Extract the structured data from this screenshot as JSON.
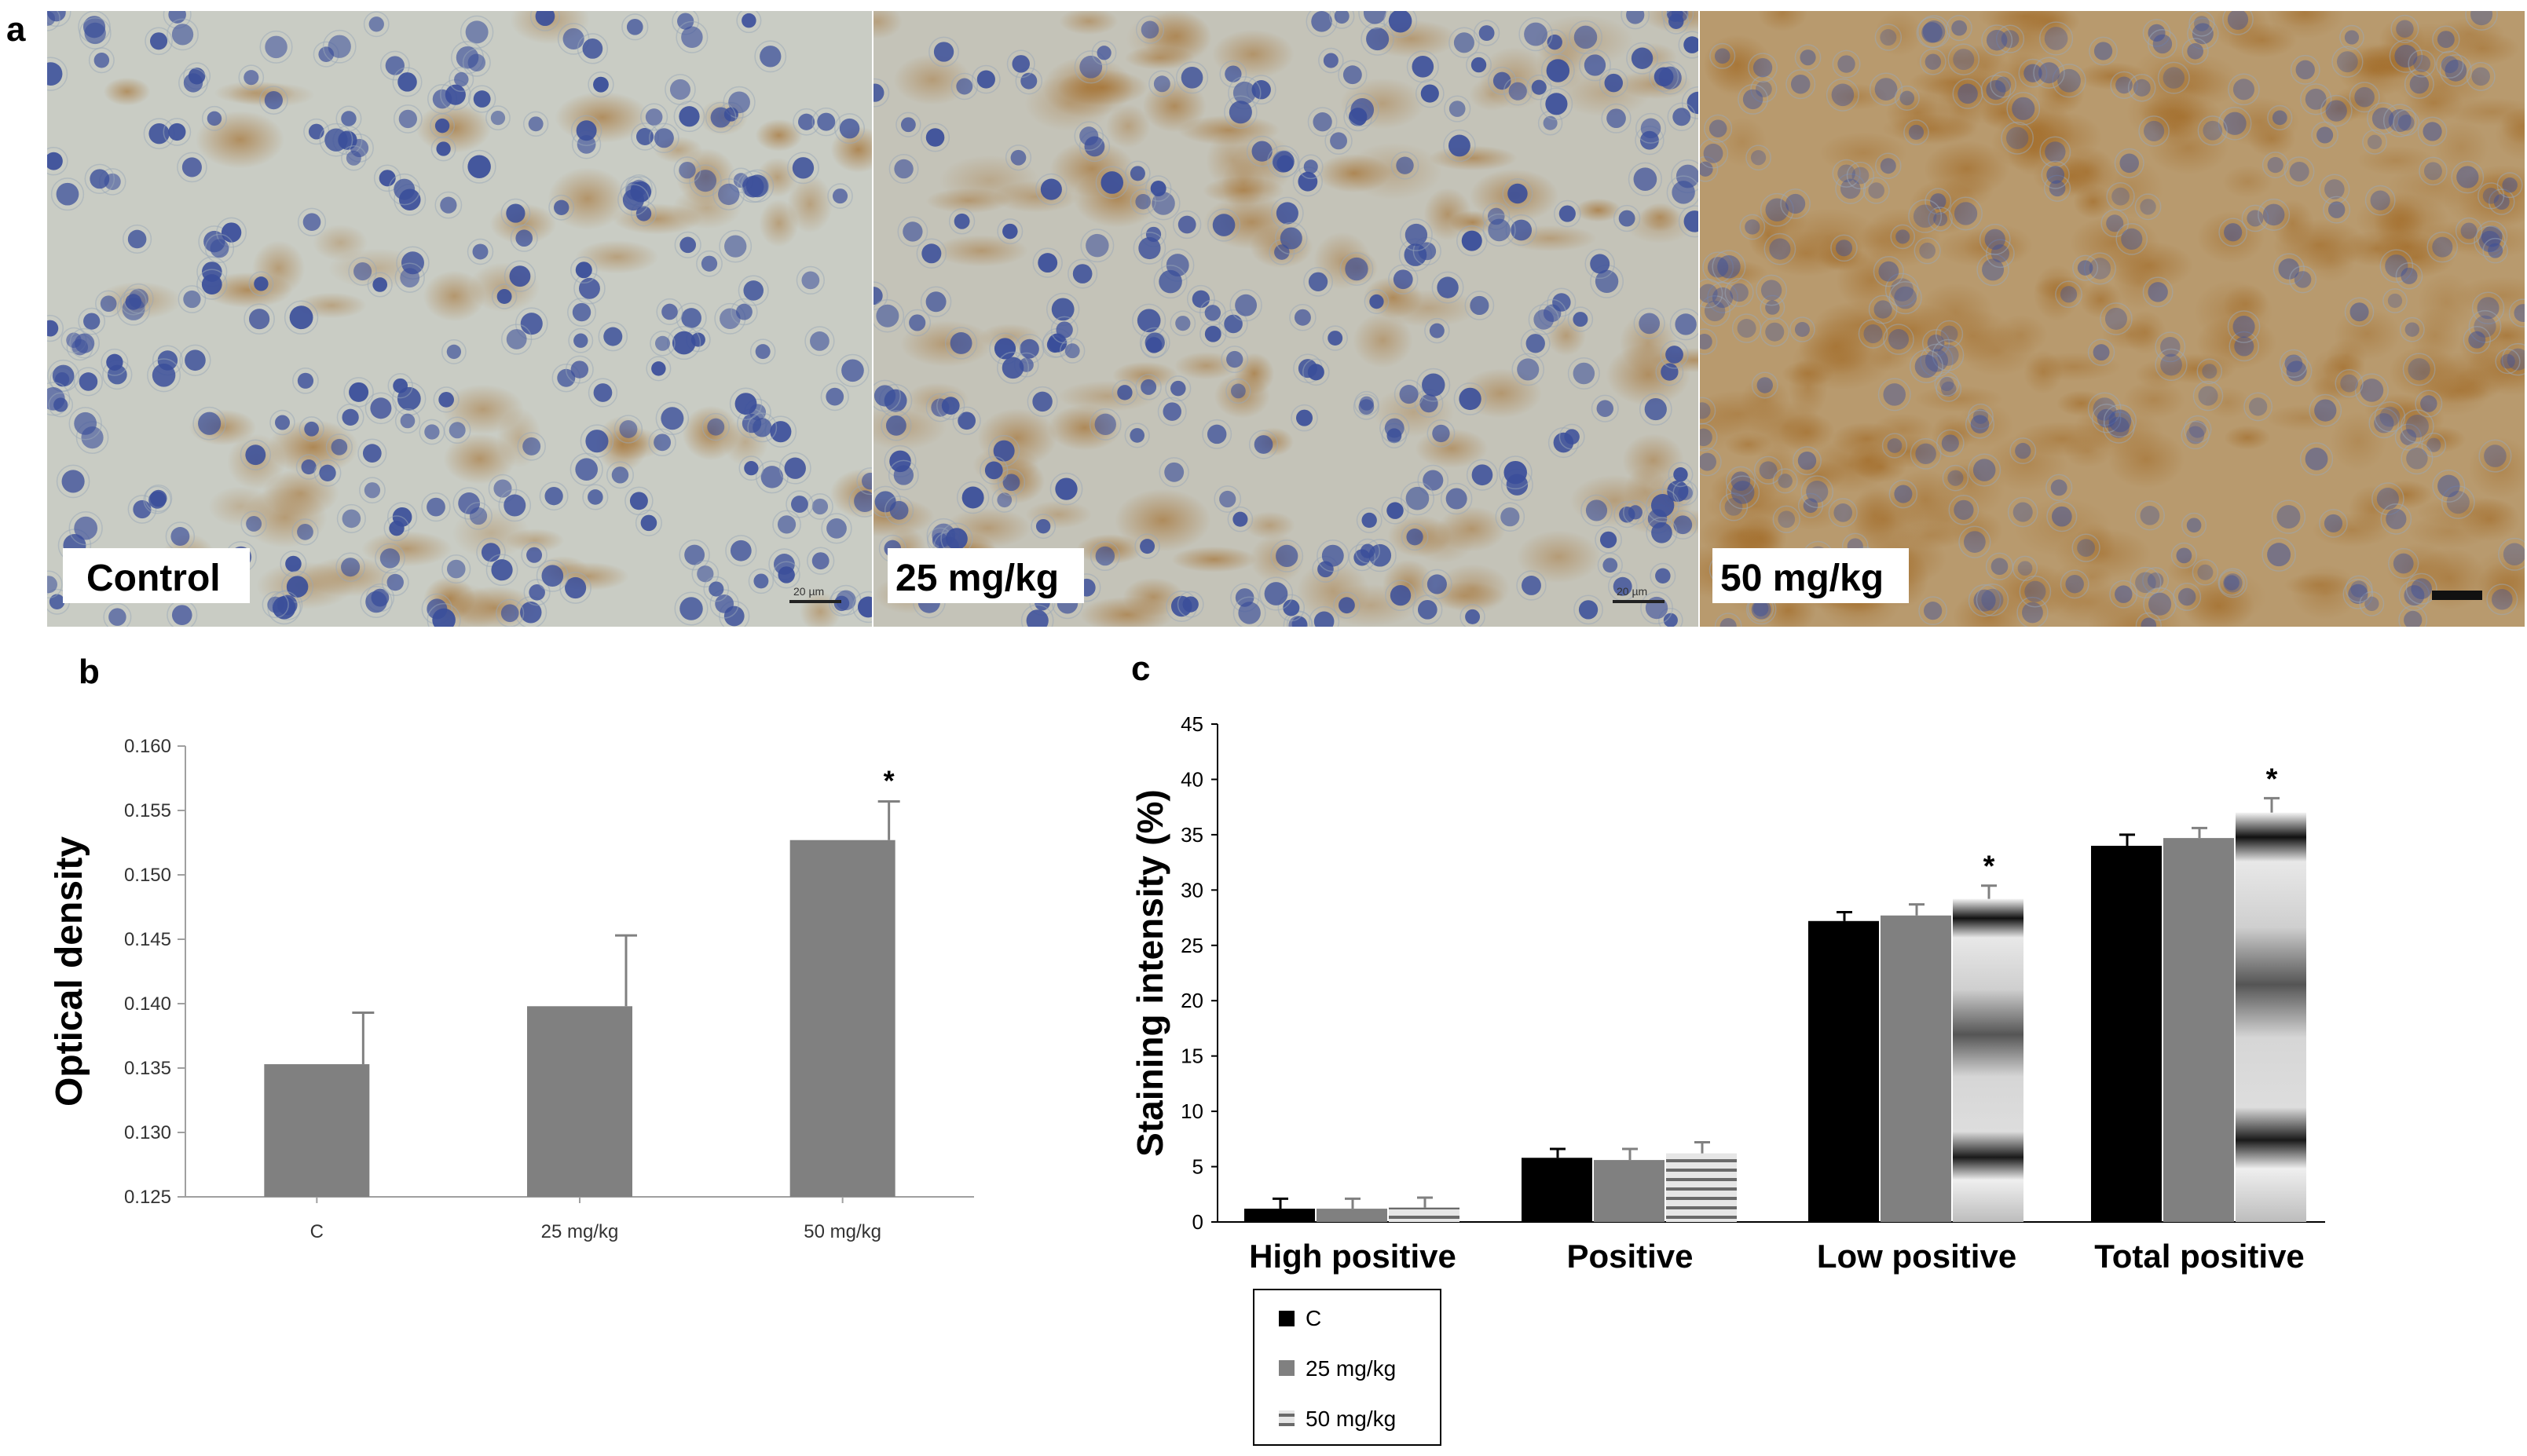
{
  "panels": {
    "a": {
      "letter": "a",
      "images": [
        {
          "label": "Control",
          "scale_text": "20 µm"
        },
        {
          "label": "25 mg/kg",
          "scale_text": "20 µm"
        },
        {
          "label": "50 mg/kg",
          "scale_text": ""
        }
      ],
      "colors": {
        "tissue": "#c9ccc4",
        "nuclei": "#3a4e9a",
        "stain": "#b07b35"
      }
    },
    "b": {
      "letter": "b"
    },
    "c": {
      "letter": "c"
    }
  },
  "legend": {
    "items": [
      {
        "label": "C",
        "pattern": "solid-black"
      },
      {
        "label": "25 mg/kg",
        "pattern": "solid-gray"
      },
      {
        "label": "50 mg/kg",
        "pattern": "striped-gray"
      }
    ]
  },
  "chart_data": [
    {
      "type": "bar",
      "panel": "b",
      "categories": [
        "C",
        "25 mg/kg",
        "50 mg/kg"
      ],
      "values": [
        0.1353,
        0.1398,
        0.1527
      ],
      "errors": [
        0.004,
        0.0055,
        0.003
      ],
      "significance": [
        "",
        "",
        "*"
      ],
      "xlabel": "",
      "ylabel": "Optical density",
      "ylim": [
        0.125,
        0.16
      ],
      "yticks": [
        "0.125",
        "0.130",
        "0.135",
        "0.140",
        "0.145",
        "0.150",
        "0.155",
        "0.160"
      ],
      "colors": {
        "bar": "#808080"
      }
    },
    {
      "type": "bar",
      "panel": "c",
      "categories": [
        "High positive",
        "Positive",
        "Low positive",
        "Total positive"
      ],
      "series": [
        {
          "label": "C",
          "values": [
            1.2,
            5.8,
            27.2,
            34.0
          ],
          "errors": [
            0.9,
            0.8,
            0.8,
            1.0
          ]
        },
        {
          "label": "25 mg/kg",
          "values": [
            1.2,
            5.6,
            27.7,
            34.7
          ],
          "errors": [
            0.9,
            1.0,
            1.0,
            0.9
          ]
        },
        {
          "label": "50 mg/kg",
          "values": [
            1.3,
            6.2,
            29.2,
            37.0
          ],
          "errors": [
            0.9,
            1.0,
            1.2,
            1.3
          ]
        }
      ],
      "significance": [
        [
          "",
          "",
          ""
        ],
        [
          "",
          "",
          ""
        ],
        [
          "",
          "",
          "*"
        ],
        [
          "",
          "",
          "*"
        ]
      ],
      "xlabel": "",
      "ylabel": "Staining intensity (%)",
      "ylim": [
        0,
        45
      ],
      "yticks": [
        "0",
        "5",
        "10",
        "15",
        "20",
        "25",
        "30",
        "35",
        "40",
        "45"
      ],
      "colors": {
        "C": "#000000",
        "25 mg/kg": "#808080",
        "50 mg/kg": "#b0b0b0"
      }
    }
  ]
}
